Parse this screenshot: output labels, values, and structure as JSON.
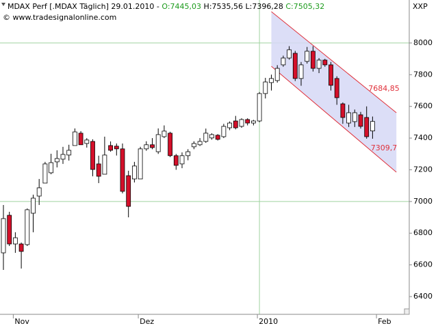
{
  "chart_data": {
    "type": "candlestick",
    "title": "MDAX Perf [.MDAX  Täglich] 29.01.2010 -",
    "quote": [
      "O:7445,03",
      "H:7535,56 L:7396,28",
      "C:7505,32"
    ],
    "copyright": "© www.tradesignalonline.com",
    "axis_label": "XXP",
    "categories": [
      null,
      null,
      "Nov",
      null,
      null,
      null,
      null,
      null,
      null,
      null,
      null,
      null,
      null,
      null,
      null,
      null,
      null,
      null,
      null,
      null,
      null,
      null,
      null,
      "Dez",
      null,
      null,
      null,
      null,
      null,
      null,
      null,
      null,
      null,
      null,
      null,
      null,
      null,
      null,
      null,
      null,
      null,
      null,
      null,
      "2010",
      null,
      null,
      null,
      null,
      null,
      null,
      null,
      null,
      null,
      null,
      null,
      null,
      null,
      null,
      null,
      null,
      null,
      null,
      null,
      "Feb"
    ],
    "open": [
      6676,
      6913,
      6732,
      6732,
      6728,
      6926,
      7034,
      7116,
      7181,
      7250,
      7267,
      7293,
      7353,
      7431,
      7366,
      7379,
      7237,
      7172,
      7353,
      7349,
      7332,
      7163,
      7142,
      7142,
      7332,
      7358,
      7314,
      7409,
      7431,
      7289,
      7237,
      7289,
      7345,
      7358,
      7379,
      7401,
      7418,
      7409,
      7465,
      7508,
      7474,
      7517,
      7495,
      7508,
      7681,
      7750,
      7763,
      7862,
      7905,
      7935,
      7776,
      7884,
      7948,
      7840,
      7892,
      7862,
      7776,
      7616,
      7495,
      7504,
      7547,
      7530,
      7445,
      null
    ],
    "high": [
      6978,
      6935,
      6806,
      6741,
      6956,
      7043,
      7142,
      7250,
      7301,
      7323,
      7345,
      7358,
      7461,
      7444,
      7400,
      7392,
      7289,
      7409,
      7379,
      7366,
      7366,
      7194,
      7250,
      7345,
      7380,
      7400,
      7461,
      7480,
      7440,
      7300,
      7310,
      7330,
      7380,
      7400,
      7460,
      7430,
      7425,
      7490,
      7505,
      7540,
      7525,
      7525,
      7515,
      7690,
      7780,
      7800,
      7860,
      7920,
      7980,
      7950,
      7880,
      7975,
      7980,
      7905,
      7900,
      7880,
      7790,
      7625,
      7610,
      7580,
      7565,
      7600,
      7536,
      null
    ],
    "low": [
      6568,
      6719,
      6676,
      6577,
      6719,
      6806,
      6978,
      7116,
      7172,
      7215,
      7237,
      7258,
      7353,
      7358,
      7340,
      7159,
      7116,
      7172,
      7314,
      7290,
      7051,
      6900,
      7120,
      7142,
      7320,
      7330,
      7300,
      7400,
      7280,
      7200,
      7210,
      7260,
      7330,
      7350,
      7370,
      7390,
      7385,
      7400,
      7450,
      7455,
      7465,
      7480,
      7480,
      7500,
      7650,
      7700,
      7750,
      7850,
      7895,
      7760,
      7730,
      7870,
      7820,
      7810,
      7850,
      7700,
      7610,
      7490,
      7470,
      7470,
      7460,
      7396,
      7396,
      null
    ],
    "close": [
      6892,
      6732,
      6771,
      6685,
      6948,
      7021,
      7086,
      7237,
      7245,
      7271,
      7297,
      7323,
      7439,
      7358,
      7388,
      7202,
      7159,
      7293,
      7323,
      7332,
      7064,
      6969,
      7224,
      7332,
      7358,
      7340,
      7422,
      7444,
      7289,
      7228,
      7289,
      7314,
      7366,
      7379,
      7431,
      7422,
      7392,
      7474,
      7495,
      7465,
      7517,
      7495,
      7508,
      7681,
      7754,
      7776,
      7840,
      7905,
      7957,
      7776,
      7862,
      7948,
      7840,
      7892,
      7862,
      7733,
      7655,
      7530,
      7560,
      7560,
      7474,
      7409,
      7505,
      null
    ],
    "up_color": "#ffffff",
    "down_color": "#d4102a",
    "ylim": [
      6288,
      8185
    ],
    "yticks": [
      6400,
      6600,
      6800,
      7000,
      7200,
      7400,
      7600,
      7800,
      8000
    ],
    "hgrid": [
      7000,
      8000
    ],
    "xgrid": [
      43
    ],
    "channel": {
      "x": [
        45,
        66
      ],
      "upper": [
        8198,
        7560
      ],
      "lower": [
        7853,
        7185
      ],
      "color": "#e0303a",
      "fill": "#d6d8f6",
      "labels": [
        {
          "value": 7684.85,
          "label": "7684,85"
        },
        {
          "value": 7309.7,
          "label": "7309,7"
        }
      ]
    }
  }
}
